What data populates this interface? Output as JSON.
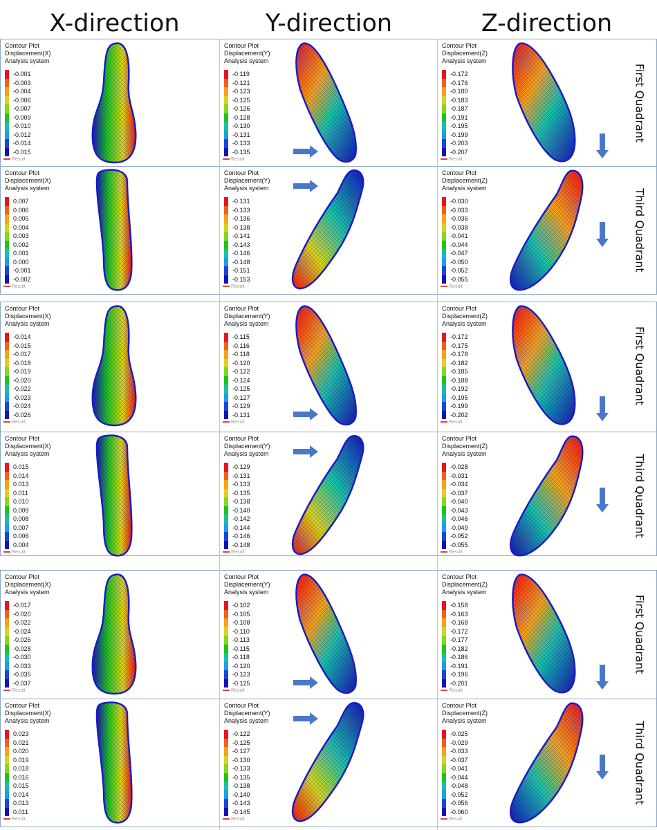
{
  "headers": [
    "X-direction",
    "Y-direction",
    "Z-direction"
  ],
  "quadrant_labels": [
    "First Quadrant",
    "Third Quadrant",
    "First Quadrant",
    "Third Quadrant",
    "First Quadrant",
    "Third Quadrant"
  ],
  "plot_title": "Contour Plot",
  "analysis_label": "Analysis system",
  "result_label": "Result",
  "displacement_labels": [
    "Displacement(X)",
    "Displacement(Y)",
    "Displacement(Z)"
  ],
  "legend_colors": [
    "#e8141e",
    "#f2601e",
    "#f5a21c",
    "#d8d41c",
    "#86d81c",
    "#1ec41c",
    "#19c0a8",
    "#1c9ee8",
    "#1c46d8",
    "#1414b4"
  ],
  "legends": [
    [
      [
        "-0.001",
        "-0.003",
        "-0.004",
        "-0.006",
        "-0.007",
        "-0.009",
        "-0.010",
        "-0.012",
        "-0.014",
        "-0.015"
      ],
      [
        "-0.119",
        "-0.121",
        "-0.123",
        "-0.125",
        "-0.126",
        "-0.128",
        "-0.130",
        "-0.131",
        "-0.133",
        "-0.135"
      ],
      [
        "-0.172",
        "-0.176",
        "-0.180",
        "-0.183",
        "-0.187",
        "-0.191",
        "-0.195",
        "-0.199",
        "-0.203",
        "-0.207"
      ]
    ],
    [
      [
        "0.007",
        "0.006",
        "0.005",
        "0.004",
        "0.003",
        "0.002",
        "0.001",
        "0.000",
        "-0.001",
        "-0.002"
      ],
      [
        "-0.131",
        "-0.133",
        "-0.136",
        "-0.138",
        "-0.141",
        "-0.143",
        "-0.146",
        "-0.148",
        "-0.151",
        "-0.153"
      ],
      [
        "-0.030",
        "-0.033",
        "-0.036",
        "-0.038",
        "-0.041",
        "-0.044",
        "-0.047",
        "-0.050",
        "-0.052",
        "-0.055"
      ]
    ],
    [
      [
        "-0.014",
        "-0.015",
        "-0.017",
        "-0.018",
        "-0.019",
        "-0.020",
        "-0.022",
        "-0.023",
        "-0.024",
        "-0.026"
      ],
      [
        "-0.115",
        "-0.116",
        "-0.118",
        "-0.120",
        "-0.122",
        "-0.124",
        "-0.125",
        "-0.127",
        "-0.129",
        "-0.131"
      ],
      [
        "-0.172",
        "-0.175",
        "-0.178",
        "-0.182",
        "-0.185",
        "-0.188",
        "-0.192",
        "-0.195",
        "-0.199",
        "-0.202"
      ]
    ],
    [
      [
        "0.015",
        "0.014",
        "0.013",
        "0.011",
        "0.010",
        "0.009",
        "0.008",
        "0.007",
        "0.006",
        "0.004"
      ],
      [
        "-0.129",
        "-0.131",
        "-0.133",
        "-0.135",
        "-0.138",
        "-0.140",
        "-0.142",
        "-0.144",
        "-0.146",
        "-0.148"
      ],
      [
        "-0.028",
        "-0.031",
        "-0.034",
        "-0.037",
        "-0.040",
        "-0.043",
        "-0.046",
        "-0.049",
        "-0.052",
        "-0.055"
      ]
    ],
    [
      [
        "-0.017",
        "-0.020",
        "-0.022",
        "-0.024",
        "-0.026",
        "-0.028",
        "-0.030",
        "-0.033",
        "-0.035",
        "-0.037"
      ],
      [
        "-0.102",
        "-0.105",
        "-0.108",
        "-0.110",
        "-0.113",
        "-0.115",
        "-0.118",
        "-0.120",
        "-0.123",
        "-0.125"
      ],
      [
        "-0.158",
        "-0.163",
        "-0.168",
        "-0.172",
        "-0.177",
        "-0.182",
        "-0.186",
        "-0.191",
        "-0.196",
        "-0.201"
      ]
    ],
    [
      [
        "0.023",
        "0.021",
        "0.020",
        "0.019",
        "0.018",
        "0.016",
        "0.015",
        "0.014",
        "0.013",
        "0.011"
      ],
      [
        "-0.122",
        "-0.125",
        "-0.127",
        "-0.130",
        "-0.133",
        "-0.135",
        "-0.138",
        "-0.140",
        "-0.143",
        "-0.145"
      ],
      [
        "-0.025",
        "-0.029",
        "-0.033",
        "-0.037",
        "-0.041",
        "-0.044",
        "-0.048",
        "-0.052",
        "-0.056",
        "-0.060"
      ]
    ]
  ]
}
